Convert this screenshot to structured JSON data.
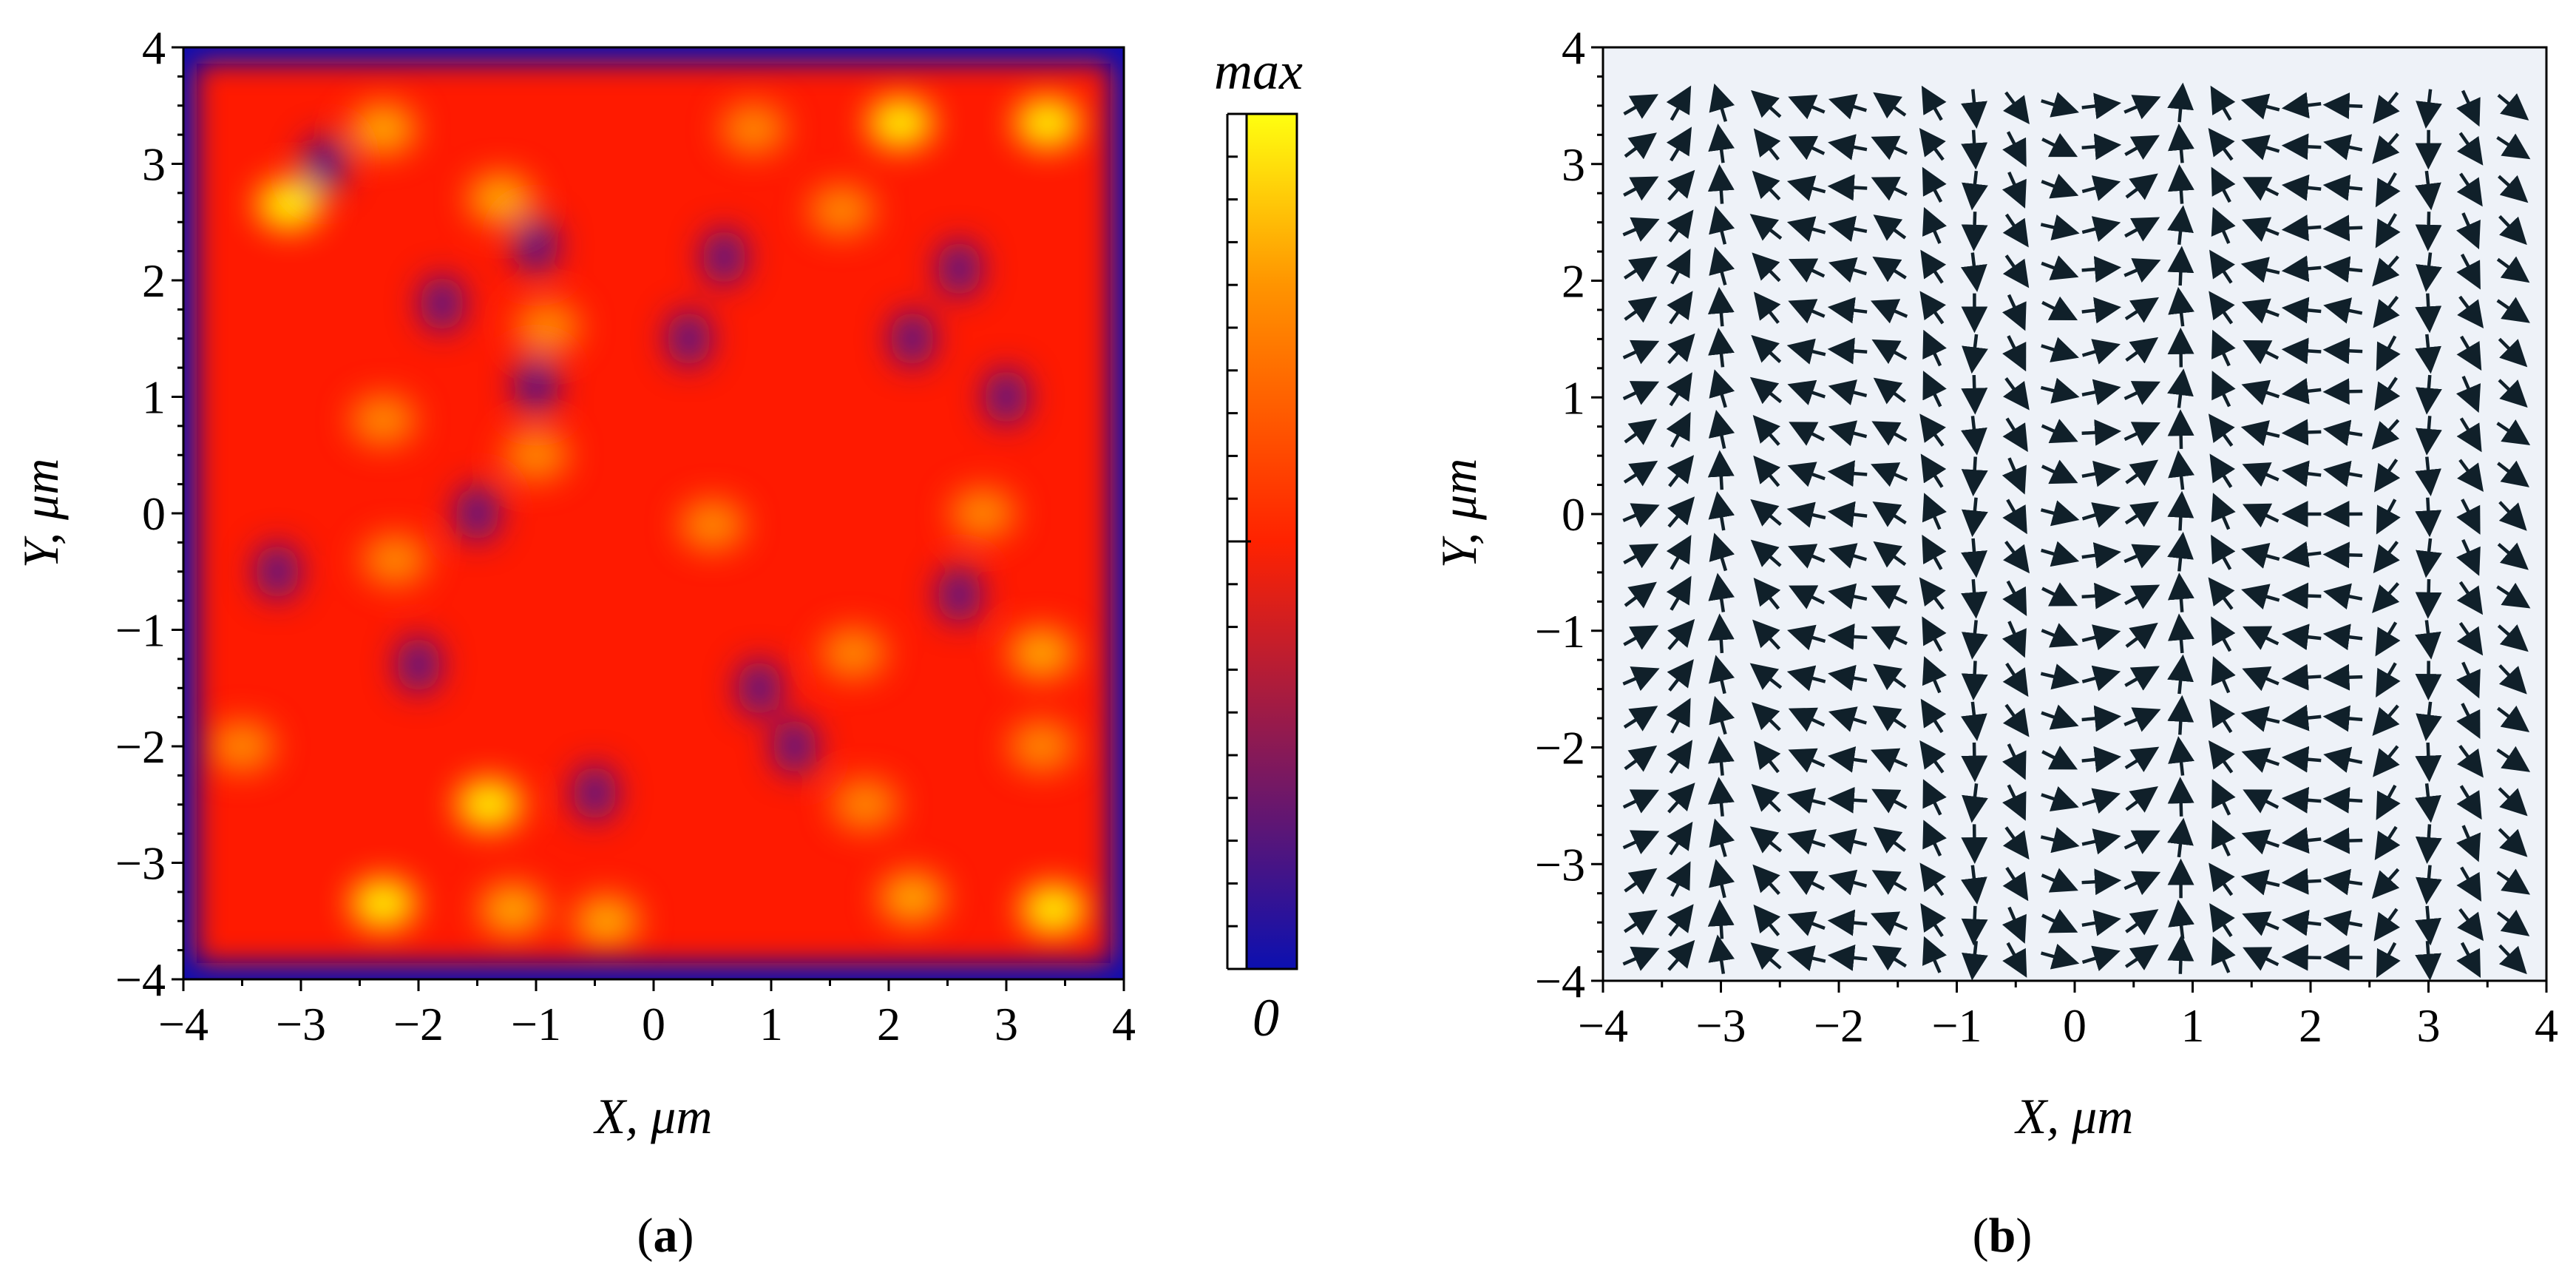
{
  "chart_data": [
    {
      "type": "heatmap",
      "panel_label": "a",
      "title": "",
      "xlabel": "X, μm",
      "ylabel": "Y, μm",
      "xlim": [
        -4,
        4
      ],
      "ylim": [
        -4,
        4
      ],
      "xticks": [
        "−4",
        "−3",
        "−2",
        "−1",
        "0",
        "1",
        "2",
        "3",
        "4"
      ],
      "yticks": [
        "4",
        "3",
        "2",
        "1",
        "0",
        "−1",
        "−2",
        "−3",
        "−4"
      ],
      "colorbar": {
        "max_label": "max",
        "min_label": "0",
        "colors": [
          "#1010b0",
          "#ff2000",
          "#ff9000",
          "#ffff00"
        ]
      },
      "background_color": "#ff1a00",
      "hotspots": [
        {
          "x": -3.1,
          "y": 2.65,
          "v": 0.95
        },
        {
          "x": -2.3,
          "y": 3.3,
          "v": 0.9
        },
        {
          "x": -1.3,
          "y": 2.7,
          "v": 0.85
        },
        {
          "x": 2.1,
          "y": 3.35,
          "v": 1.0
        },
        {
          "x": 3.35,
          "y": 3.35,
          "v": 0.95
        },
        {
          "x": 0.85,
          "y": 3.3,
          "v": 0.8
        },
        {
          "x": -0.9,
          "y": 1.6,
          "v": 0.8
        },
        {
          "x": 1.6,
          "y": 2.6,
          "v": 0.8
        },
        {
          "x": -2.3,
          "y": 0.8,
          "v": 0.8
        },
        {
          "x": -1.0,
          "y": 0.5,
          "v": 0.75
        },
        {
          "x": 2.8,
          "y": 0.0,
          "v": 0.8
        },
        {
          "x": 3.3,
          "y": -1.2,
          "v": 0.85
        },
        {
          "x": -2.2,
          "y": -0.4,
          "v": 0.8
        },
        {
          "x": 1.7,
          "y": -1.2,
          "v": 0.8
        },
        {
          "x": -1.4,
          "y": -2.5,
          "v": 0.95
        },
        {
          "x": -2.3,
          "y": -3.35,
          "v": 0.95
        },
        {
          "x": -1.2,
          "y": -3.4,
          "v": 0.9
        },
        {
          "x": -0.4,
          "y": -3.5,
          "v": 0.85
        },
        {
          "x": 2.2,
          "y": -3.3,
          "v": 0.9
        },
        {
          "x": 3.4,
          "y": -3.4,
          "v": 0.95
        },
        {
          "x": 1.8,
          "y": -2.5,
          "v": 0.8
        },
        {
          "x": 3.3,
          "y": -2.0,
          "v": 0.8
        },
        {
          "x": -3.5,
          "y": -2.0,
          "v": 0.8
        },
        {
          "x": 0.5,
          "y": -0.1,
          "v": 0.7
        }
      ],
      "coldspots": [
        {
          "x": -1.0,
          "y": 1.1
        },
        {
          "x": -1.0,
          "y": 2.3
        },
        {
          "x": -1.5,
          "y": 0.0
        },
        {
          "x": -2.8,
          "y": 3.0
        },
        {
          "x": 0.3,
          "y": 1.5
        },
        {
          "x": 2.2,
          "y": 1.5
        },
        {
          "x": 2.6,
          "y": 2.1
        },
        {
          "x": -3.2,
          "y": -0.5
        },
        {
          "x": 0.9,
          "y": -1.5
        },
        {
          "x": -0.5,
          "y": -2.4
        },
        {
          "x": 1.2,
          "y": -2.0
        },
        {
          "x": 0.6,
          "y": 2.2
        },
        {
          "x": -2.0,
          "y": -1.3
        },
        {
          "x": 2.6,
          "y": -0.7
        },
        {
          "x": -1.8,
          "y": 1.8
        },
        {
          "x": 3.0,
          "y": 1.0
        }
      ]
    },
    {
      "type": "scatter",
      "subtype": "vector-field",
      "panel_label": "b",
      "title": "",
      "xlabel": "X, μm",
      "ylabel": "Y, μm",
      "xlim": [
        -4,
        4
      ],
      "ylim": [
        -4,
        4
      ],
      "xticks": [
        "−4",
        "−3",
        "−2",
        "−1",
        "0",
        "1",
        "2",
        "3",
        "4"
      ],
      "yticks": [
        "4",
        "3",
        "2",
        "1",
        "0",
        "−1",
        "−2",
        "−3",
        "−4"
      ],
      "background_color": "#eef2f8",
      "arrow_color": "#10202a",
      "x_positions": [
        -3.7,
        -3.35,
        -3.0,
        -2.6,
        -2.25,
        -1.9,
        -1.55,
        -1.2,
        -0.85,
        -0.5,
        -0.15,
        0.2,
        0.55,
        0.9,
        1.25,
        1.6,
        1.95,
        2.3,
        2.65,
        3.0,
        3.35,
        3.7
      ],
      "y_positions": [
        3.5,
        3.15,
        2.8,
        2.45,
        2.1,
        1.75,
        1.4,
        1.05,
        0.7,
        0.35,
        0.0,
        -0.35,
        -0.7,
        -1.05,
        -1.4,
        -1.75,
        -2.1,
        -2.45,
        -2.8,
        -3.15,
        -3.5,
        -3.8
      ],
      "angles_deg": [
        30,
        55,
        100,
        135,
        160,
        170,
        150,
        120,
        270,
        300,
        340,
        10,
        30,
        90,
        120,
        160,
        180,
        175,
        235,
        270,
        300,
        320
      ],
      "arrow_length": 0.28
    }
  ]
}
